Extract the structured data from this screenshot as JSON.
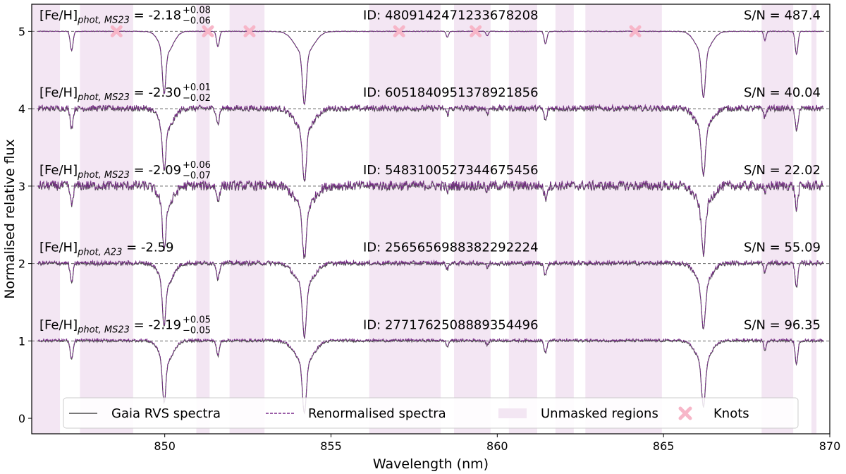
{
  "chart_data": {
    "type": "line",
    "xlabel": "Wavelength (nm)",
    "ylabel": "Normalised relative flux",
    "xlim": [
      846,
      870
    ],
    "ylim": [
      -0.2,
      5.35
    ],
    "xticks": [
      850,
      855,
      860,
      865,
      870
    ],
    "yticks": [
      0,
      1,
      2,
      3,
      4,
      5
    ],
    "grid": false,
    "unmasked_regions": [
      [
        846.0,
        846.85
      ],
      [
        847.45,
        849.05
      ],
      [
        850.95,
        851.35
      ],
      [
        851.95,
        853.0
      ],
      [
        856.15,
        858.3
      ],
      [
        858.7,
        859.8
      ],
      [
        860.35,
        861.2
      ],
      [
        861.75,
        862.3
      ],
      [
        862.65,
        864.95
      ],
      [
        867.95,
        868.9
      ],
      [
        869.45,
        869.6
      ]
    ],
    "knots": {
      "y": 5.0,
      "x": [
        848.55,
        851.3,
        852.55,
        857.05,
        859.35,
        864.15
      ]
    },
    "line_cores": [
      {
        "center": 847.2,
        "depth": 0.25,
        "width": 0.06
      },
      {
        "center": 849.98,
        "depth": 0.55,
        "width": 0.07
      },
      {
        "center": 850.05,
        "depth": 0.28,
        "width": 0.28
      },
      {
        "center": 851.6,
        "depth": 0.2,
        "width": 0.06
      },
      {
        "center": 854.2,
        "depth": 0.65,
        "width": 0.08
      },
      {
        "center": 854.2,
        "depth": 0.3,
        "width": 0.38
      },
      {
        "center": 858.5,
        "depth": 0.08,
        "width": 0.05
      },
      {
        "center": 859.7,
        "depth": 0.06,
        "width": 0.05
      },
      {
        "center": 861.45,
        "depth": 0.16,
        "width": 0.06
      },
      {
        "center": 866.2,
        "depth": 0.58,
        "width": 0.08
      },
      {
        "center": 866.2,
        "depth": 0.28,
        "width": 0.32
      },
      {
        "center": 868.05,
        "depth": 0.12,
        "width": 0.05
      },
      {
        "center": 869.0,
        "depth": 0.3,
        "width": 0.06
      }
    ],
    "series": [
      {
        "offset": 5,
        "noise": 0.004,
        "metallicity": "[Fe/H]$_{phot,MS23}$ = -2.18$^{+0.08}_{-0.06}$",
        "met_base": "[Fe/H]",
        "met_sub": "phot, MS23",
        "met_value": " = -2.18",
        "met_err_up": "+0.08",
        "met_err_down": "−0.06",
        "id": "ID: 4809142471233678208",
        "snr": "S/N = 487.4"
      },
      {
        "offset": 4,
        "noise": 0.035,
        "metallicity": "[Fe/H]$_{phot,MS23}$ = -2.30$^{+0.01}_{-0.02}$",
        "met_base": "[Fe/H]",
        "met_sub": "phot, MS23",
        "met_value": " = -2.30",
        "met_err_up": "+0.01",
        "met_err_down": "−0.02",
        "id": "ID: 6051840951378921856",
        "snr": "S/N = 40.04"
      },
      {
        "offset": 3,
        "noise": 0.06,
        "metallicity": "[Fe/H]$_{phot,MS23}$ = -2.09$^{+0.06}_{-0.07}$",
        "met_base": "[Fe/H]",
        "met_sub": "phot, MS23",
        "met_value": " = -2.09",
        "met_err_up": "+0.06",
        "met_err_down": "−0.07",
        "id": "ID: 5483100527344675456",
        "snr": "S/N = 22.02"
      },
      {
        "offset": 2,
        "noise": 0.025,
        "metallicity": "[Fe/H]$_{phot,A23}$ = -2.59",
        "met_base": "[Fe/H]",
        "met_sub": "phot, A23",
        "met_value": " = -2.59",
        "met_err_up": "",
        "met_err_down": "",
        "id": "ID: 2565656988382292224",
        "snr": "S/N = 55.09"
      },
      {
        "offset": 1,
        "noise": 0.015,
        "metallicity": "[Fe/H]$_{phot,MS23}$ = -2.19$^{+0.05}_{-0.05}$",
        "met_base": "[Fe/H]",
        "met_sub": "phot, MS23",
        "met_value": " = -2.19",
        "met_err_up": "+0.05",
        "met_err_down": "−0.05",
        "id": "ID: 2771762508889354496",
        "snr": "S/N = 96.35"
      }
    ],
    "legend": {
      "placement": "bottom-center",
      "entries": [
        {
          "label": "Gaia RVS spectra",
          "kind": "solid-line",
          "color": "#4d4d4d"
        },
        {
          "label": "Renormalised spectra",
          "kind": "dashed-line",
          "color": "#7a2a8c"
        },
        {
          "label": "Unmasked regions",
          "kind": "patch",
          "color": "#f3e6f3"
        },
        {
          "label": "Knots",
          "kind": "x-marker",
          "color": "#f7b6c8"
        }
      ]
    },
    "colors": {
      "gaia": "#4d4d4d",
      "renorm": "#7a2a8c",
      "region": "#f3e6f3",
      "knot": "#f7b6c8",
      "reference": "#666666"
    }
  }
}
